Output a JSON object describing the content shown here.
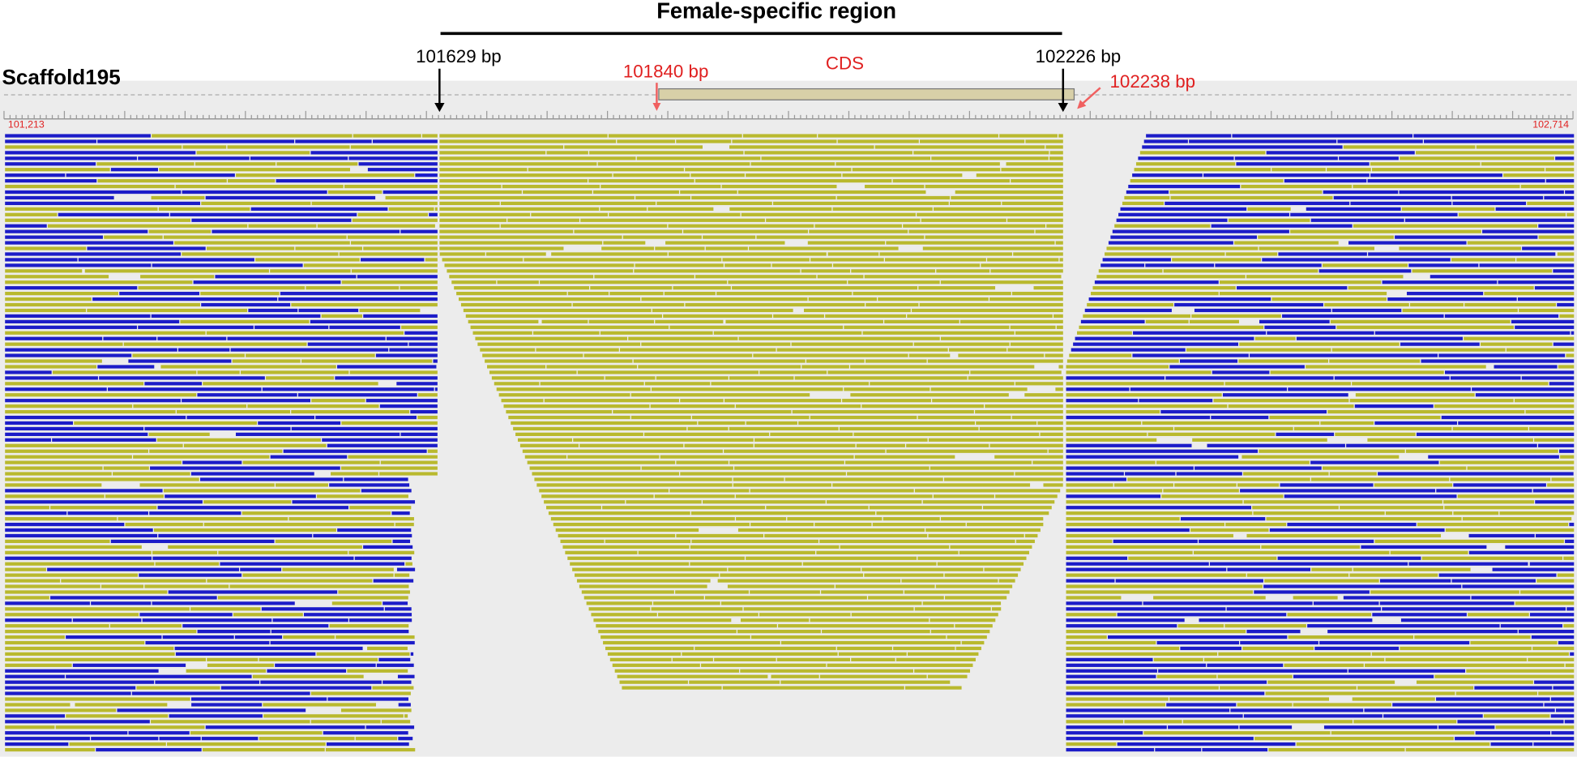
{
  "header": {
    "title": "Female-specific region",
    "scaffold": "Scaffold195"
  },
  "annotations": {
    "boundary_left": "101629 bp",
    "boundary_right": "102226 bp",
    "cds_start": "101840 bp",
    "cds_end": "102238 bp",
    "cds_label": "CDS"
  },
  "ruler": {
    "start": "101,213",
    "end": "102,714"
  }
}
